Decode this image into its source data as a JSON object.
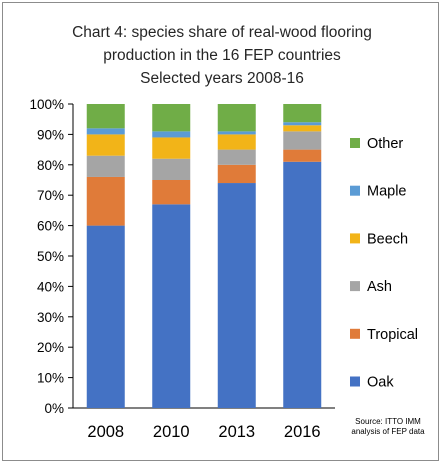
{
  "chart_data": {
    "type": "bar",
    "stacked": true,
    "title_lines": [
      "Chart 4: species share of real-wood flooring",
      "production in the 16 FEP countries",
      "Selected years 2008-16"
    ],
    "categories": [
      "2008",
      "2010",
      "2013",
      "2016"
    ],
    "ylim": [
      0,
      100
    ],
    "yticks": [
      "0%",
      "10%",
      "20%",
      "30%",
      "40%",
      "50%",
      "60%",
      "70%",
      "80%",
      "90%",
      "100%"
    ],
    "series": [
      {
        "name": "Oak",
        "color": "#4472c4",
        "values": [
          60,
          67,
          74,
          81
        ]
      },
      {
        "name": "Tropical",
        "color": "#e07b39",
        "values": [
          16,
          8,
          6,
          4
        ]
      },
      {
        "name": "Ash",
        "color": "#a5a5a5",
        "values": [
          7,
          7,
          5,
          6
        ]
      },
      {
        "name": "Beech",
        "color": "#f2b418",
        "values": [
          7,
          7,
          5,
          2
        ]
      },
      {
        "name": "Maple",
        "color": "#5b9bd5",
        "values": [
          2,
          2,
          1,
          1
        ]
      },
      {
        "name": "Other",
        "color": "#70ad47",
        "values": [
          8,
          9,
          9,
          6
        ]
      }
    ],
    "source_lines": [
      "Source: ITTO IMM",
      "analysis of FEP data"
    ],
    "legend_position": "right",
    "grid": false
  }
}
